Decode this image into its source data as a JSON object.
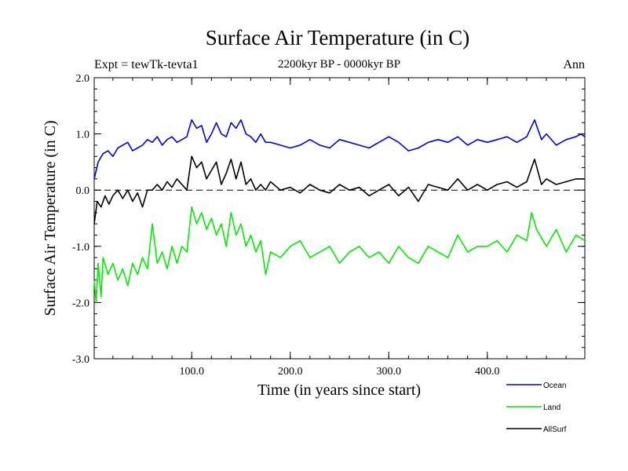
{
  "chart_data": {
    "type": "line",
    "title": "Surface Air Temperature (in C)",
    "subtitle": "2200kyr BP - 0000kyr BP",
    "experiment_label": "Expt = tewTk-tevta1",
    "period_label": "Ann",
    "xlabel": "Time (in years since start)",
    "ylabel": "Surface Air Temperature (in C)",
    "xlim": [
      1,
      499
    ],
    "ylim": [
      -3.0,
      2.0
    ],
    "x_ticks": [
      100,
      200,
      300,
      400
    ],
    "x_tick_labels": [
      "100.0",
      "200.0",
      "300.0",
      "400.0"
    ],
    "y_ticks": [
      -3,
      -2,
      -1,
      0,
      1,
      2
    ],
    "y_tick_labels": [
      "-3.0",
      "-2.0",
      "-1.0",
      "0.0",
      "1.0",
      "2.0"
    ],
    "zero_reference_line": "dashed",
    "legend_position": "bottom-right",
    "series": [
      {
        "name": "Ocean",
        "color": "#0000ee",
        "x": [
          1,
          5,
          10,
          15,
          20,
          25,
          30,
          35,
          40,
          45,
          50,
          55,
          60,
          65,
          70,
          75,
          80,
          85,
          90,
          95,
          100,
          105,
          110,
          115,
          120,
          125,
          130,
          135,
          140,
          145,
          150,
          155,
          160,
          165,
          170,
          175,
          180,
          190,
          200,
          210,
          220,
          230,
          240,
          250,
          260,
          270,
          280,
          290,
          300,
          310,
          320,
          330,
          340,
          350,
          360,
          370,
          380,
          390,
          400,
          410,
          420,
          430,
          440,
          448,
          455,
          460,
          470,
          480,
          490,
          495,
          499
        ],
        "values": [
          0.2,
          0.5,
          0.65,
          0.7,
          0.6,
          0.75,
          0.8,
          0.85,
          0.7,
          0.75,
          0.8,
          0.9,
          0.85,
          0.95,
          0.8,
          0.9,
          0.95,
          0.85,
          0.9,
          0.95,
          1.25,
          1.1,
          1.15,
          0.85,
          1.0,
          1.2,
          1.0,
          0.95,
          1.2,
          1.1,
          1.25,
          1.0,
          0.95,
          0.85,
          1.0,
          0.85,
          0.85,
          0.8,
          0.75,
          0.8,
          0.9,
          0.8,
          0.75,
          0.9,
          0.85,
          0.8,
          0.75,
          0.85,
          0.95,
          0.85,
          0.7,
          0.75,
          0.85,
          0.9,
          0.85,
          0.95,
          0.8,
          0.9,
          0.85,
          0.9,
          0.95,
          0.85,
          0.95,
          1.25,
          0.9,
          1.0,
          0.8,
          0.9,
          0.95,
          1.0,
          0.95
        ]
      },
      {
        "name": "Land",
        "color": "#00ee00",
        "x": [
          1,
          3,
          5,
          8,
          10,
          15,
          20,
          25,
          30,
          35,
          40,
          45,
          50,
          55,
          60,
          65,
          70,
          75,
          80,
          85,
          90,
          95,
          100,
          105,
          110,
          115,
          120,
          125,
          130,
          135,
          140,
          145,
          150,
          155,
          160,
          165,
          170,
          175,
          180,
          190,
          200,
          210,
          220,
          230,
          240,
          250,
          260,
          270,
          280,
          290,
          300,
          310,
          320,
          330,
          340,
          350,
          360,
          370,
          380,
          390,
          400,
          410,
          420,
          430,
          440,
          445,
          450,
          460,
          470,
          480,
          490,
          499
        ],
        "values": [
          -1.6,
          -2.0,
          -1.3,
          -1.9,
          -1.2,
          -1.5,
          -1.3,
          -1.6,
          -1.4,
          -1.7,
          -1.3,
          -1.5,
          -1.2,
          -1.4,
          -0.6,
          -1.3,
          -1.1,
          -1.4,
          -1.0,
          -1.3,
          -1.0,
          -1.1,
          -0.3,
          -0.6,
          -0.4,
          -0.7,
          -0.5,
          -0.8,
          -0.6,
          -1.0,
          -0.4,
          -0.8,
          -0.6,
          -1.0,
          -0.8,
          -1.1,
          -0.9,
          -1.5,
          -1.1,
          -1.2,
          -1.0,
          -0.9,
          -1.2,
          -1.1,
          -1.0,
          -1.3,
          -1.1,
          -1.0,
          -1.2,
          -1.1,
          -1.3,
          -1.0,
          -1.2,
          -1.3,
          -1.0,
          -1.1,
          -1.2,
          -0.8,
          -1.1,
          -1.0,
          -1.0,
          -0.9,
          -1.1,
          -0.8,
          -0.9,
          -0.4,
          -0.7,
          -1.0,
          -0.7,
          -1.1,
          -0.8,
          -0.9
        ]
      },
      {
        "name": "AllSurf",
        "color": "#000000",
        "x": [
          1,
          4,
          8,
          12,
          16,
          20,
          25,
          30,
          35,
          40,
          45,
          50,
          55,
          60,
          65,
          70,
          75,
          80,
          85,
          90,
          95,
          100,
          105,
          110,
          115,
          120,
          125,
          130,
          135,
          140,
          145,
          150,
          155,
          160,
          165,
          170,
          175,
          180,
          190,
          200,
          210,
          220,
          230,
          240,
          250,
          260,
          270,
          280,
          290,
          300,
          310,
          320,
          330,
          340,
          350,
          360,
          370,
          380,
          390,
          400,
          410,
          420,
          430,
          440,
          448,
          455,
          460,
          470,
          480,
          490,
          499
        ],
        "values": [
          -0.6,
          -0.2,
          -0.3,
          -0.1,
          -0.25,
          -0.1,
          0.0,
          -0.15,
          0.0,
          -0.2,
          -0.05,
          -0.3,
          0.0,
          0.0,
          0.1,
          0.0,
          0.15,
          0.05,
          0.2,
          0.1,
          0.0,
          0.6,
          0.4,
          0.5,
          0.2,
          0.35,
          0.5,
          0.1,
          0.3,
          0.55,
          0.2,
          0.5,
          0.1,
          0.2,
          0.0,
          0.1,
          0.0,
          0.15,
          0.0,
          0.05,
          -0.05,
          0.1,
          0.0,
          -0.05,
          0.1,
          0.0,
          0.05,
          -0.1,
          0.0,
          0.1,
          -0.1,
          0.05,
          -0.2,
          0.1,
          0.05,
          0.0,
          0.2,
          0.0,
          0.1,
          0.0,
          0.1,
          0.15,
          0.05,
          0.15,
          0.55,
          0.1,
          0.2,
          0.1,
          0.15,
          0.2,
          0.2
        ]
      }
    ]
  }
}
